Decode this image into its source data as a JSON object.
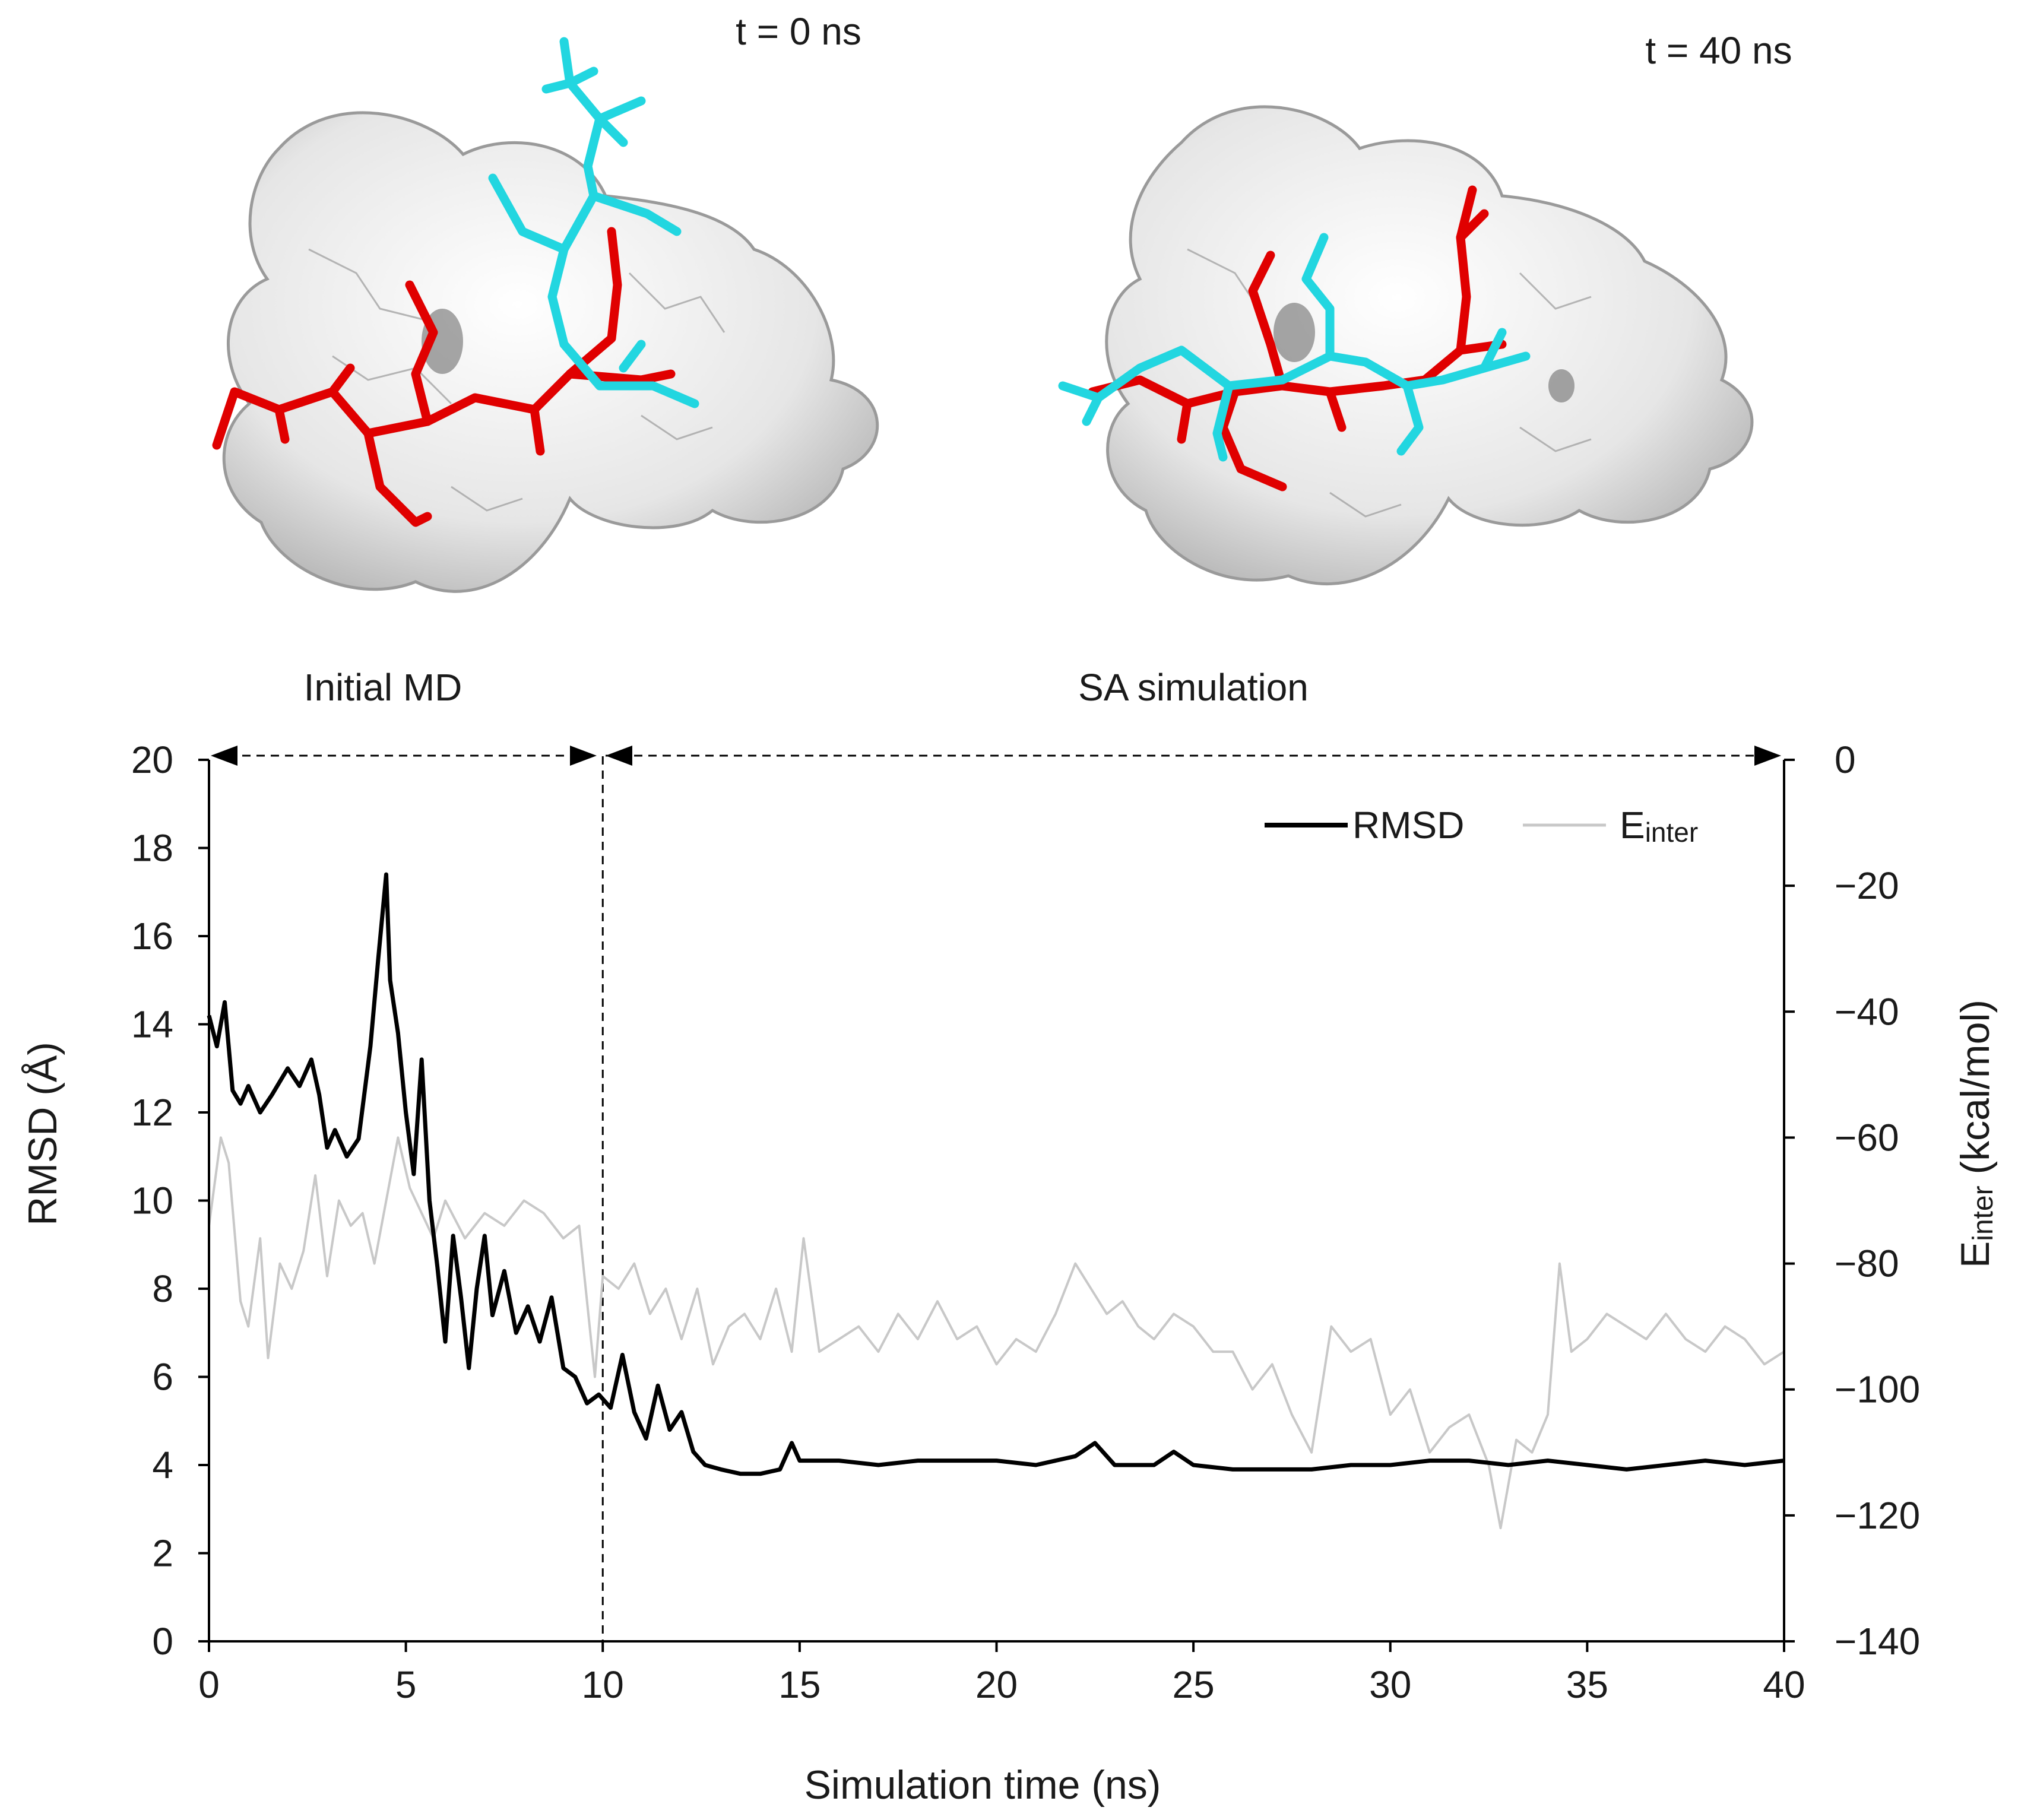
{
  "panels": {
    "left_time_label": "t = 0 ns",
    "right_time_label": "t = 40 ns"
  },
  "phases": {
    "initial": "Initial MD",
    "sa": "SA simulation"
  },
  "legend": {
    "rmsd": "RMSD",
    "einter_main": "E",
    "einter_sub": "inter"
  },
  "axes": {
    "xlabel": "Simulation time (ns)",
    "ylabel_left": "RMSD (Å)",
    "ylabel_right_main": "E",
    "ylabel_right_sub": "inter",
    "ylabel_right_unit": " (kcal/mol)"
  },
  "colors": {
    "rmsd": "#000000",
    "einter": "#c8c8c8",
    "ligand_red": "#e00000",
    "ligand_cyan": "#22d6e0",
    "surface": "#ebebeb"
  },
  "chart_data": {
    "type": "line",
    "xlim": [
      0,
      40
    ],
    "ylim_left": [
      0,
      20
    ],
    "ylim_right": [
      -140,
      0
    ],
    "x_ticks": [
      0,
      5,
      10,
      15,
      20,
      25,
      30,
      35,
      40
    ],
    "y_ticks_left": [
      0,
      2,
      4,
      6,
      8,
      10,
      12,
      14,
      16,
      18,
      20
    ],
    "y_ticks_right": [
      0,
      -20,
      -40,
      -60,
      -80,
      -100,
      -120,
      -140
    ],
    "y_tick_labels_right": [
      "0",
      "−20",
      "−40",
      "−60",
      "−80",
      "−100",
      "−120",
      "−140"
    ],
    "phase_boundary": 10,
    "series": [
      {
        "name": "RMSD",
        "axis": "left",
        "x": [
          0,
          0.2,
          0.4,
          0.6,
          0.8,
          1.0,
          1.3,
          1.6,
          2.0,
          2.3,
          2.6,
          2.8,
          3.0,
          3.2,
          3.5,
          3.8,
          4.1,
          4.3,
          4.5,
          4.6,
          4.8,
          5.0,
          5.2,
          5.4,
          5.6,
          5.8,
          6.0,
          6.2,
          6.4,
          6.6,
          6.8,
          7.0,
          7.2,
          7.5,
          7.8,
          8.1,
          8.4,
          8.7,
          9.0,
          9.3,
          9.6,
          9.9,
          10.2,
          10.5,
          10.8,
          11.1,
          11.4,
          11.7,
          12.0,
          12.3,
          12.6,
          13.0,
          13.5,
          14.0,
          14.5,
          14.8,
          15.0,
          16,
          17,
          18,
          19,
          20,
          21,
          22,
          22.5,
          23,
          24,
          24.5,
          25,
          26,
          27,
          28,
          29,
          30,
          31,
          32,
          33,
          34,
          35,
          36,
          37,
          38,
          39,
          40
        ],
        "values": [
          14.2,
          13.5,
          14.5,
          12.5,
          12.2,
          12.6,
          12.0,
          12.4,
          13.0,
          12.6,
          13.2,
          12.4,
          11.2,
          11.6,
          11.0,
          11.4,
          13.5,
          15.5,
          17.4,
          15.0,
          13.8,
          12.0,
          10.6,
          13.2,
          10.0,
          8.5,
          6.8,
          9.2,
          7.8,
          6.2,
          8.0,
          9.2,
          7.4,
          8.4,
          7.0,
          7.6,
          6.8,
          7.8,
          6.2,
          6.0,
          5.4,
          5.6,
          5.3,
          6.5,
          5.2,
          4.6,
          5.8,
          4.8,
          5.2,
          4.3,
          4.0,
          3.9,
          3.8,
          3.8,
          3.9,
          4.5,
          4.1,
          4.1,
          4.0,
          4.1,
          4.1,
          4.1,
          4.0,
          4.2,
          4.5,
          4.0,
          4.0,
          4.3,
          4.0,
          3.9,
          3.9,
          3.9,
          4.0,
          4.0,
          4.1,
          4.1,
          4.0,
          4.1,
          4.0,
          3.9,
          4.0,
          4.1,
          4.0,
          4.1
        ]
      },
      {
        "name": "Einter",
        "axis": "right",
        "x": [
          0,
          0.3,
          0.5,
          0.8,
          1.0,
          1.3,
          1.5,
          1.8,
          2.1,
          2.4,
          2.7,
          3.0,
          3.3,
          3.6,
          3.9,
          4.2,
          4.5,
          4.8,
          5.1,
          5.4,
          5.7,
          6.0,
          6.5,
          7.0,
          7.5,
          8.0,
          8.5,
          9.0,
          9.4,
          9.8,
          10.0,
          10.4,
          10.8,
          11.2,
          11.6,
          12.0,
          12.4,
          12.8,
          13.2,
          13.6,
          14.0,
          14.4,
          14.8,
          15.1,
          15.5,
          16.0,
          16.5,
          17.0,
          17.5,
          18.0,
          18.5,
          19.0,
          19.5,
          20.0,
          20.5,
          21.0,
          21.5,
          22.0,
          22.4,
          22.8,
          23.2,
          23.6,
          24.0,
          24.5,
          25.0,
          25.5,
          26.0,
          26.5,
          27.0,
          27.5,
          28.0,
          28.5,
          29.0,
          29.5,
          30.0,
          30.5,
          31.0,
          31.5,
          32.0,
          32.5,
          32.8,
          33.2,
          33.6,
          34.0,
          34.3,
          34.6,
          35.0,
          35.5,
          36.0,
          36.5,
          37.0,
          37.5,
          38.0,
          38.5,
          39.0,
          39.5,
          40.0
        ],
        "values": [
          -74,
          -60,
          -64,
          -86,
          -90,
          -76,
          -95,
          -80,
          -84,
          -78,
          -66,
          -82,
          -70,
          -74,
          -72,
          -80,
          -70,
          -60,
          -68,
          -72,
          -76,
          -70,
          -76,
          -72,
          -74,
          -70,
          -72,
          -76,
          -74,
          -98,
          -82,
          -84,
          -80,
          -88,
          -84,
          -92,
          -84,
          -96,
          -90,
          -88,
          -92,
          -84,
          -94,
          -76,
          -94,
          -92,
          -90,
          -94,
          -88,
          -92,
          -86,
          -92,
          -90,
          -96,
          -92,
          -94,
          -88,
          -80,
          -84,
          -88,
          -86,
          -90,
          -92,
          -88,
          -90,
          -94,
          -94,
          -100,
          -96,
          -104,
          -110,
          -90,
          -94,
          -92,
          -104,
          -100,
          -110,
          -106,
          -104,
          -112,
          -122,
          -108,
          -110,
          -104,
          -80,
          -94,
          -92,
          -88,
          -90,
          -92,
          -88,
          -92,
          -94,
          -90,
          -92,
          -96,
          -94
        ]
      }
    ]
  }
}
